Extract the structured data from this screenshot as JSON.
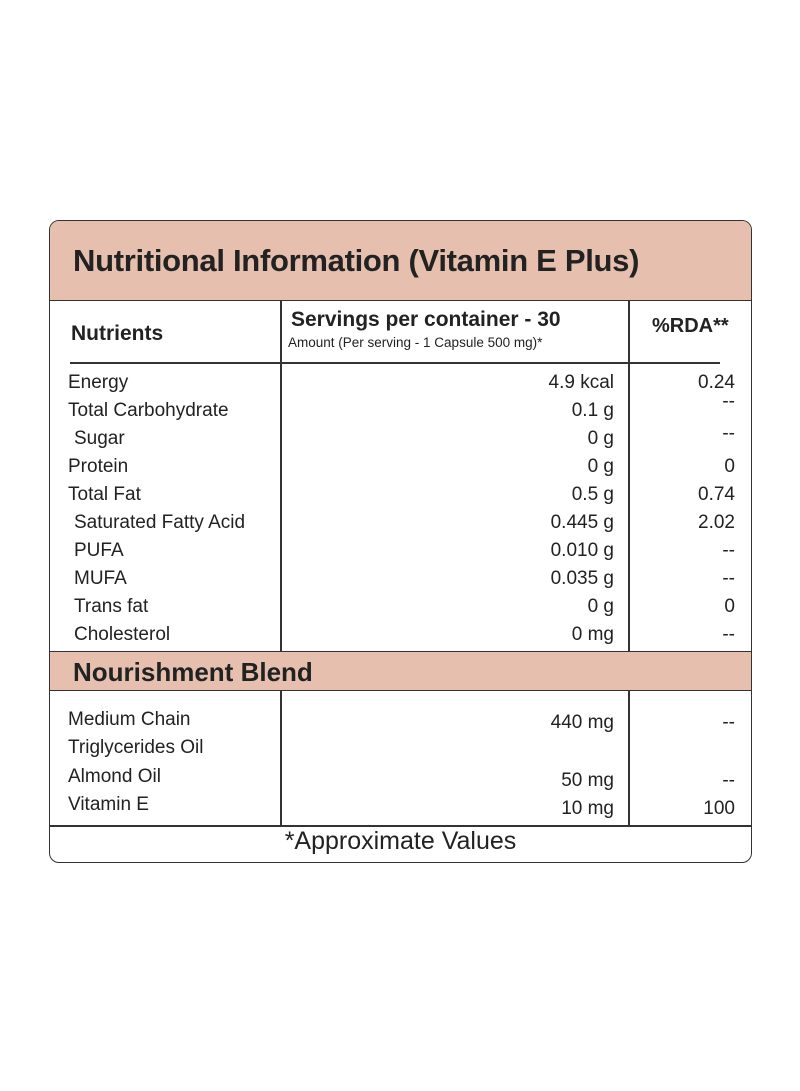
{
  "title": "Nutritional Information (Vitamin E Plus)",
  "headers": {
    "nutrients": "Nutrients",
    "servings": "Servings per container - 30",
    "amount": "Amount (Per serving - 1 Capsule 500 mg)*",
    "rda": "%RDA**"
  },
  "rows": [
    {
      "name": "Energy",
      "amount": "4.9 kcal",
      "rda": "0.24"
    },
    {
      "name": "Total Carbohydrate",
      "amount": "0.1 g",
      "rda": "--"
    },
    {
      "name": "Sugar",
      "amount": "0 g",
      "rda": "--"
    },
    {
      "name": "Protein",
      "amount": "0 g",
      "rda": "0"
    },
    {
      "name": "Total Fat",
      "amount": "0.5 g",
      "rda": "0.74"
    },
    {
      "name": "Saturated Fatty Acid",
      "amount": "0.445 g",
      "rda": "2.02"
    },
    {
      "name": "PUFA",
      "amount": "0.010 g",
      "rda": "--"
    },
    {
      "name": "MUFA",
      "amount": "0.035 g",
      "rda": "--"
    },
    {
      "name": "Trans fat",
      "amount": "0 g",
      "rda": "0"
    },
    {
      "name": "Cholesterol",
      "amount": "0 mg",
      "rda": "--"
    }
  ],
  "blend": {
    "title": "Nourishment Blend",
    "rows": [
      {
        "name_line1": "Medium Chain",
        "name_line2": "Triglycerides Oil",
        "amount": "440 mg",
        "rda": "--"
      },
      {
        "name": "Almond Oil",
        "amount": "50 mg",
        "rda": "--"
      },
      {
        "name": "Vitamin E",
        "amount": "10 mg",
        "rda": "100"
      }
    ]
  },
  "footer": "*Approximate Values"
}
